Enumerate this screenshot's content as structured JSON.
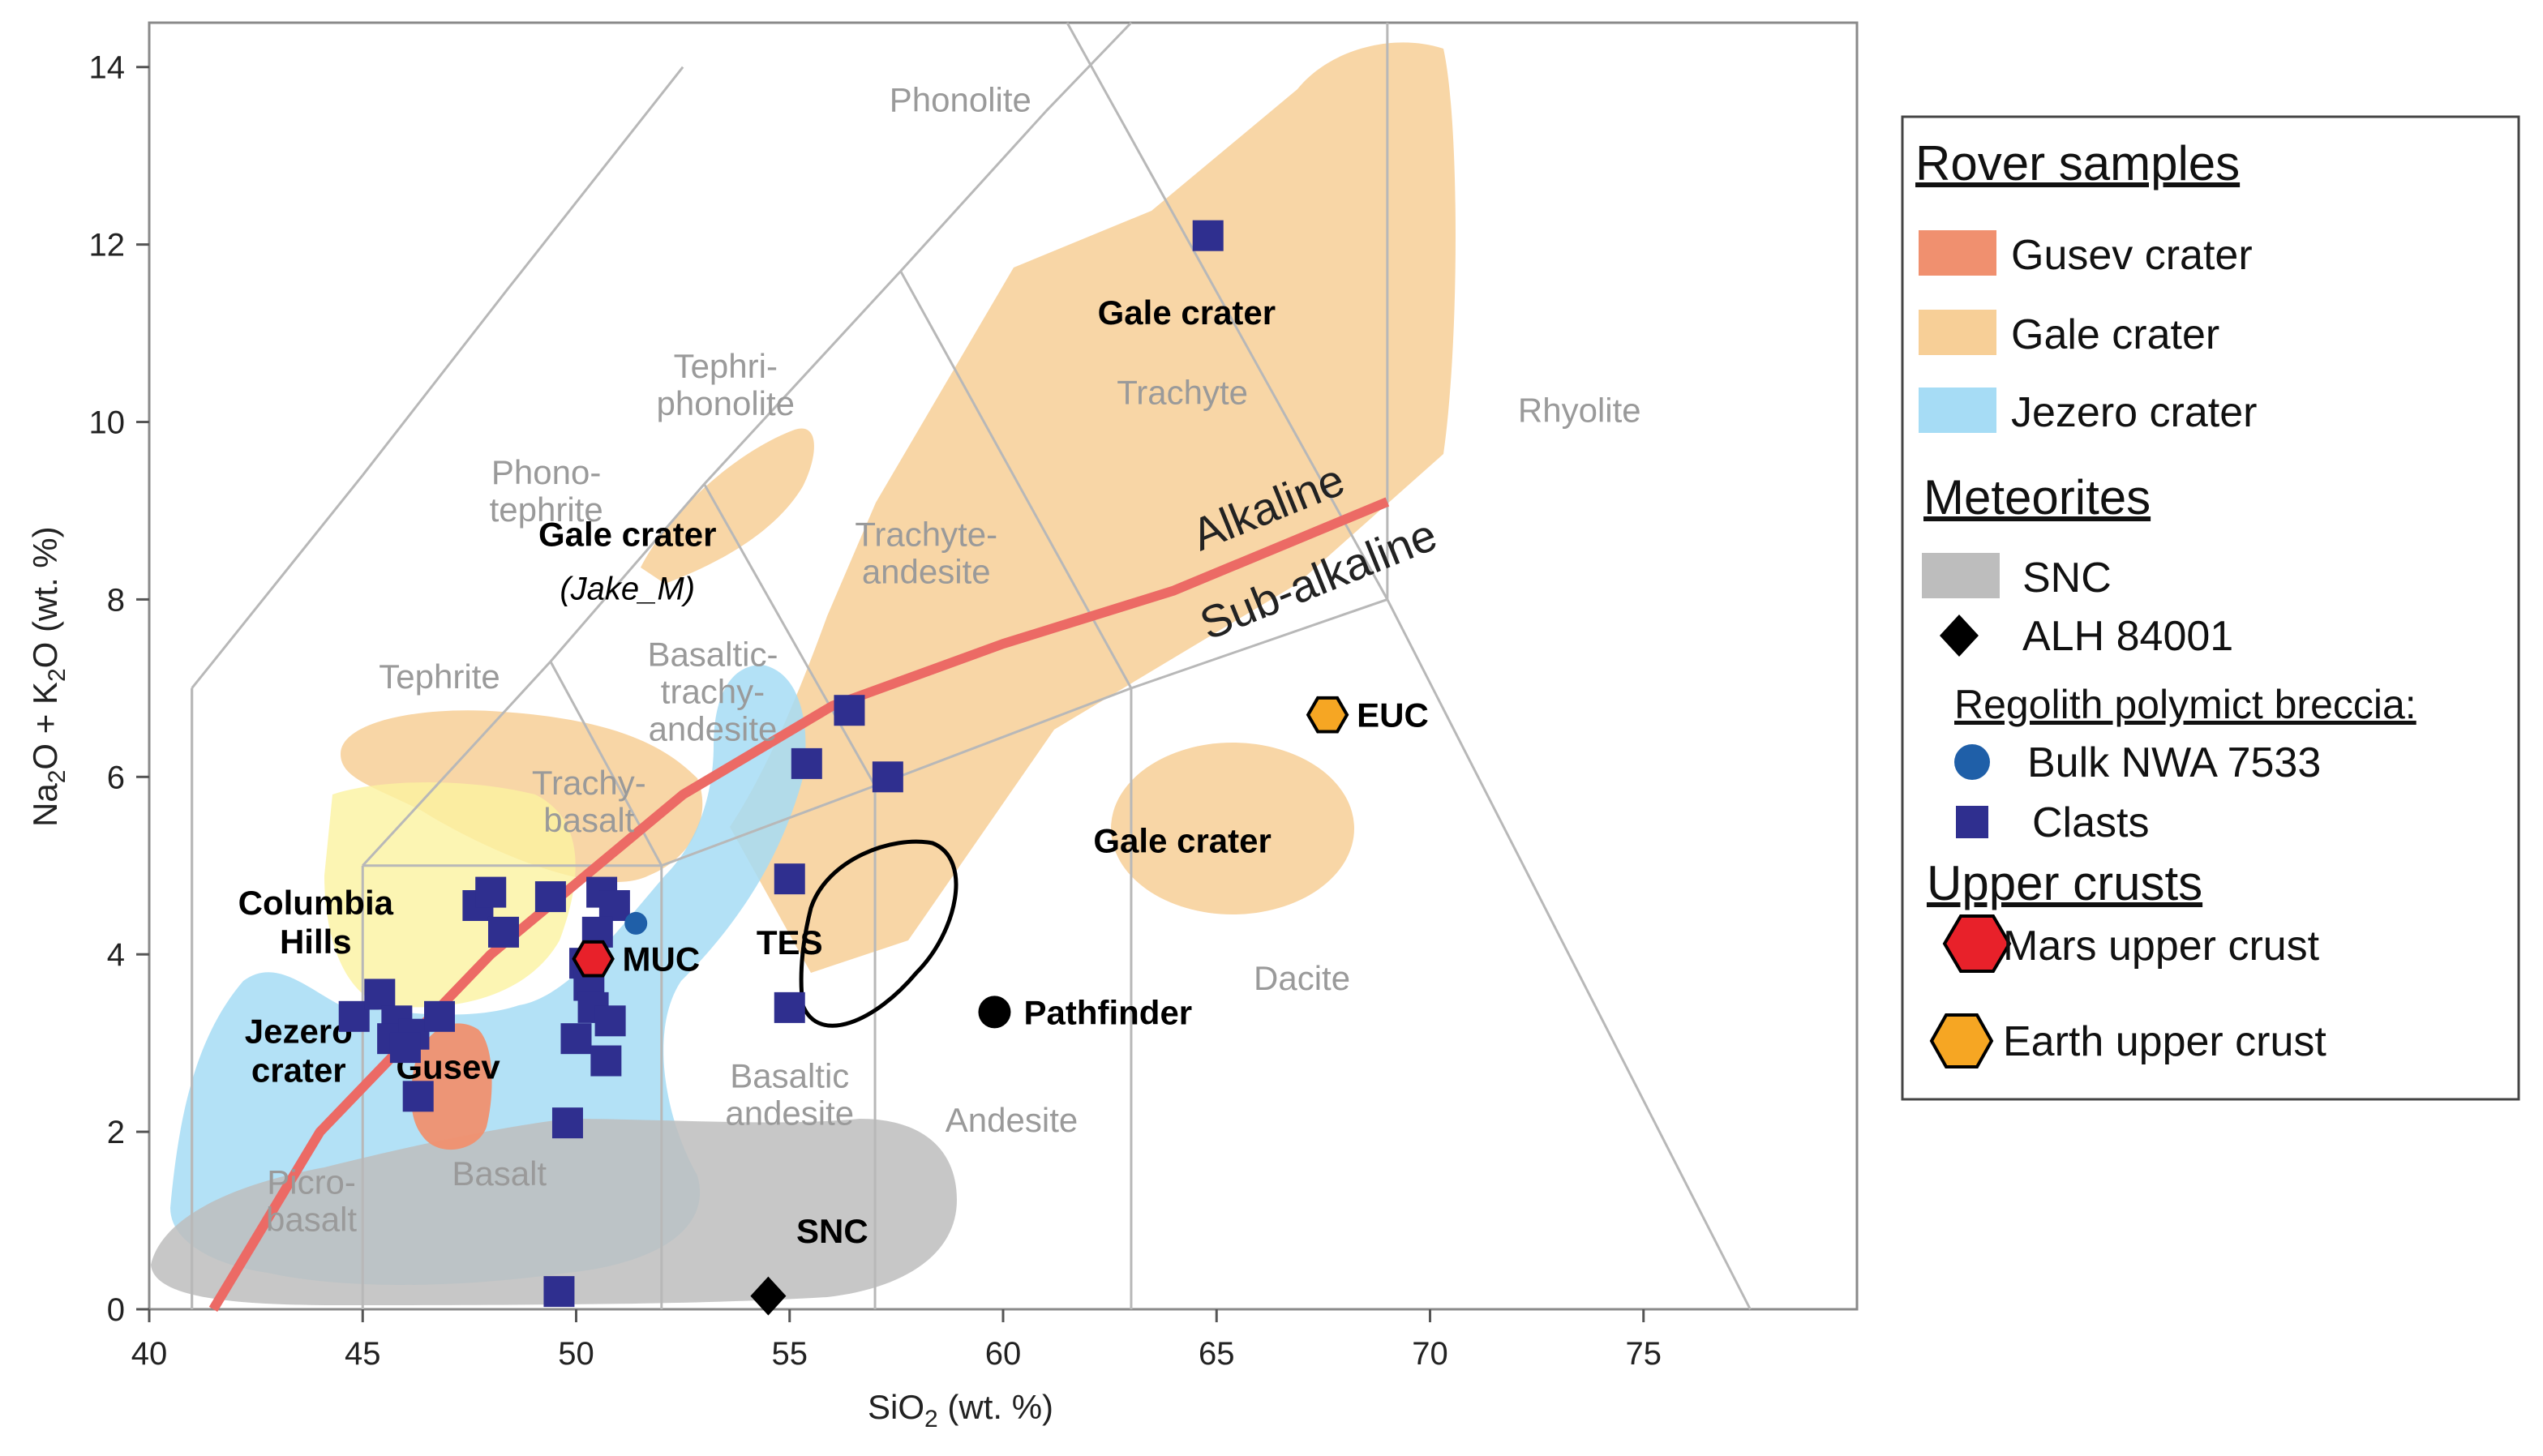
{
  "chart_data": {
    "type": "scatter",
    "title": "",
    "xlabel": {
      "pre": "SiO",
      "sub": "2",
      "post": " (wt. %)"
    },
    "ylabel": {
      "a": "Na",
      "a_sub": "2",
      "b": "O + K",
      "b_sub": "2",
      "c": "O (wt. %)"
    },
    "xlim": [
      40,
      80
    ],
    "ylim": [
      0,
      14.5
    ],
    "xticks": [
      40,
      45,
      50,
      55,
      60,
      65,
      70,
      75
    ],
    "yticks": [
      0,
      2,
      4,
      6,
      8,
      10,
      12,
      14
    ],
    "tas_field_labels": [
      {
        "id": "phonolite",
        "lines": [
          "Phonolite"
        ],
        "x": 59,
        "y": 13.5
      },
      {
        "id": "tephriphonolite",
        "lines": [
          "Tephri-",
          "phonolite"
        ],
        "x": 53.5,
        "y": 10.5
      },
      {
        "id": "phonotephrite",
        "lines": [
          "Phono-",
          "tephrite"
        ],
        "x": 49.3,
        "y": 9.3
      },
      {
        "id": "tephrite",
        "lines": [
          "Tephrite"
        ],
        "x": 46.8,
        "y": 7.0
      },
      {
        "id": "trachybasalt",
        "lines": [
          "Trachy-",
          "basalt"
        ],
        "x": 50.3,
        "y": 5.8
      },
      {
        "id": "basaltic-trachyandesite",
        "lines": [
          "Basaltic-",
          "trachy-",
          "andesite"
        ],
        "x": 53.2,
        "y": 7.25
      },
      {
        "id": "trachyandesite",
        "lines": [
          "Trachyte-",
          "andesite"
        ],
        "x": 58.2,
        "y": 8.6
      },
      {
        "id": "trachyte",
        "lines": [
          "Trachyte"
        ],
        "x": 64.2,
        "y": 10.2
      },
      {
        "id": "rhyolite",
        "lines": [
          "Rhyolite"
        ],
        "x": 73.5,
        "y": 10.0
      },
      {
        "id": "picrobasalt",
        "lines": [
          "Picro-",
          "basalt"
        ],
        "x": 43.8,
        "y": 1.3
      },
      {
        "id": "basalt",
        "lines": [
          "Basalt"
        ],
        "x": 48.2,
        "y": 1.4
      },
      {
        "id": "basaltic-andesite",
        "lines": [
          "Basaltic",
          "andesite"
        ],
        "x": 55.0,
        "y": 2.5
      },
      {
        "id": "andesite",
        "lines": [
          "Andesite"
        ],
        "x": 60.2,
        "y": 2.0
      },
      {
        "id": "dacite",
        "lines": [
          "Dacite"
        ],
        "x": 67.0,
        "y": 3.6
      }
    ],
    "alkaline_line": [
      [
        41.5,
        0
      ],
      [
        44,
        2.0
      ],
      [
        48,
        4.0
      ],
      [
        52.5,
        5.8
      ],
      [
        56,
        6.8
      ],
      [
        60,
        7.5
      ],
      [
        64,
        8.1
      ],
      [
        69,
        9.1
      ]
    ],
    "alkaline_label": "Alkaline",
    "subalkaline_label": "Sub-alkaline",
    "region_labels": [
      {
        "id": "gale-upper",
        "lines": [
          "Gale crater"
        ],
        "x": 64.3,
        "y": 11.1,
        "style": "bold"
      },
      {
        "id": "gale-jake",
        "lines": [
          "Gale crater"
        ],
        "x": 51.2,
        "y": 8.6,
        "style": "bold"
      },
      {
        "id": "gale-jake-sub",
        "lines": [
          "(Jake_M)"
        ],
        "x": 51.2,
        "y": 8.0,
        "style": "italic"
      },
      {
        "id": "columbia-hills",
        "lines": [
          "Columbia",
          "Hills"
        ],
        "x": 43.9,
        "y": 4.45,
        "style": "bold"
      },
      {
        "id": "jezero-crater",
        "lines": [
          "Jezero",
          "crater"
        ],
        "x": 43.5,
        "y": 3.0,
        "style": "bold"
      },
      {
        "id": "gusev",
        "lines": [
          "Gusev"
        ],
        "x": 47.0,
        "y": 2.6,
        "style": "bold"
      },
      {
        "id": "tes",
        "lines": [
          "TES"
        ],
        "x": 55.0,
        "y": 4.0,
        "style": "bold"
      },
      {
        "id": "snc",
        "lines": [
          "SNC"
        ],
        "x": 56.0,
        "y": 0.75,
        "style": "bold"
      },
      {
        "id": "gale-right",
        "lines": [
          "Gale crater"
        ],
        "x": 64.2,
        "y": 5.15,
        "style": "bold"
      }
    ],
    "series": [
      {
        "name": "Clasts",
        "marker": "square",
        "color": "#2f2f8f",
        "points": [
          [
            44.8,
            3.3
          ],
          [
            45.4,
            3.55
          ],
          [
            45.8,
            3.25
          ],
          [
            45.7,
            3.05
          ],
          [
            46.2,
            3.1
          ],
          [
            46.0,
            2.95
          ],
          [
            46.8,
            3.3
          ],
          [
            46.3,
            2.4
          ],
          [
            47.7,
            4.55
          ],
          [
            48.0,
            4.7
          ],
          [
            48.3,
            4.25
          ],
          [
            49.4,
            4.65
          ],
          [
            50.6,
            4.7
          ],
          [
            50.9,
            4.55
          ],
          [
            50.5,
            4.25
          ],
          [
            50.2,
            3.9
          ],
          [
            50.3,
            3.65
          ],
          [
            50.4,
            3.4
          ],
          [
            50.8,
            3.25
          ],
          [
            50.0,
            3.05
          ],
          [
            50.7,
            2.8
          ],
          [
            49.8,
            2.1
          ],
          [
            49.6,
            0.2
          ],
          [
            55.0,
            3.4
          ],
          [
            55.0,
            4.85
          ],
          [
            55.4,
            6.15
          ],
          [
            56.4,
            6.75
          ],
          [
            57.3,
            6.0
          ],
          [
            64.8,
            12.1
          ]
        ]
      },
      {
        "name": "Bulk NWA 7533",
        "marker": "circle",
        "color": "#1f5fa8",
        "points": [
          [
            51.4,
            4.35
          ]
        ]
      },
      {
        "name": "ALH 84001",
        "marker": "diamond",
        "color": "#000000",
        "points": [
          [
            54.5,
            0.15
          ]
        ]
      },
      {
        "name": "Mars upper crust",
        "marker": "hexagon",
        "color": "#e8212a",
        "points": [
          [
            50.4,
            3.95
          ]
        ],
        "label": "MUC"
      },
      {
        "name": "Earth upper crust",
        "marker": "hexagon",
        "color": "#f6a623",
        "points": [
          [
            67.6,
            6.7
          ]
        ],
        "label": "EUC"
      },
      {
        "name": "Pathfinder",
        "marker": "circle",
        "color": "#000000",
        "points": [
          [
            59.8,
            3.35
          ]
        ],
        "label": "Pathfinder"
      }
    ],
    "legend": {
      "position": "right",
      "sections": [
        {
          "title": "Rover samples",
          "items": [
            {
              "label": "Gusev crater",
              "swatch": "#f0906f"
            },
            {
              "label": "Gale crater",
              "swatch": "#f7cf97"
            },
            {
              "label": "Jezero crater",
              "swatch": "#a6dcf5"
            }
          ]
        },
        {
          "title": "Meteorites",
          "items": [
            {
              "label": "SNC",
              "swatch": "#bdbdbd"
            },
            {
              "label": "ALH 84001",
              "marker": "diamond"
            }
          ],
          "subsection": {
            "title": "Regolith polymict breccia:",
            "items": [
              {
                "label": "Bulk NWA 7533",
                "marker": "circle"
              },
              {
                "label": "Clasts",
                "marker": "square"
              }
            ]
          }
        },
        {
          "title": "Upper crusts",
          "items": [
            {
              "label": "Mars upper crust",
              "marker": "hexagon-red"
            },
            {
              "label": "Earth upper crust",
              "marker": "hexagon-orange"
            }
          ]
        }
      ]
    }
  },
  "colors": {
    "gusev": "#f0906f",
    "gale": "#f7cf97",
    "jezero": "#a6dcf5",
    "snc": "#bdbdbd",
    "columbia": "#fbf3a0",
    "alkaline_line": "#ec6a65",
    "grid": "#b8b8b8"
  }
}
